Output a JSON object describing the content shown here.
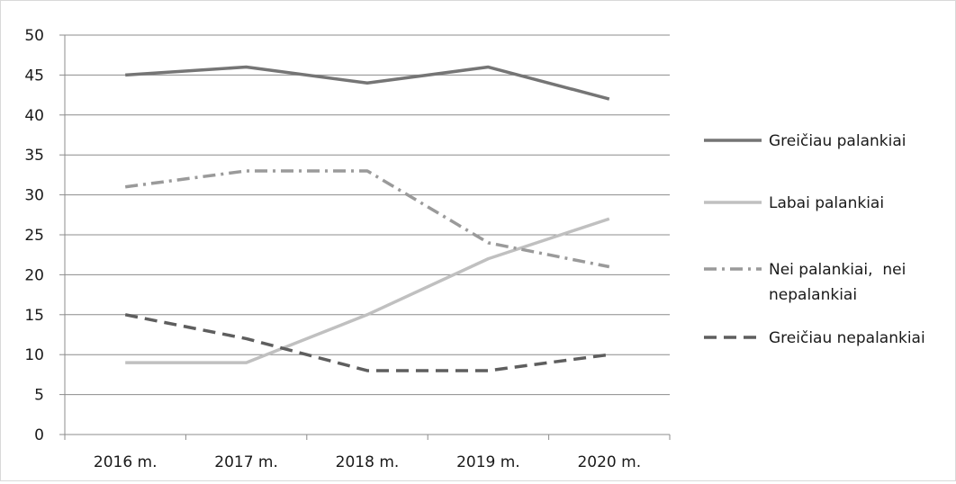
{
  "chart_data": {
    "type": "line",
    "title": "",
    "xlabel": "",
    "ylabel": "",
    "categories": [
      "2016 m.",
      "2017 m.",
      "2018 m.",
      "2019 m.",
      "2020 m."
    ],
    "ylim": [
      0,
      50
    ],
    "yticks": [
      0,
      5,
      10,
      15,
      20,
      25,
      30,
      35,
      40,
      45,
      50
    ],
    "grid": true,
    "legend_position": "right",
    "series": [
      {
        "name": "Greičiau palankiai",
        "name_lines": [
          "Greičiau palankiai"
        ],
        "values": [
          45,
          46,
          44,
          46,
          42
        ],
        "color": "#757575",
        "style": "solid"
      },
      {
        "name": "Labai palankiai",
        "name_lines": [
          "Labai palankiai"
        ],
        "values": [
          9,
          9,
          15,
          22,
          27
        ],
        "color": "#c0c0c0",
        "style": "solid"
      },
      {
        "name": "Nei palankiai, nei nepalankiai",
        "name_lines": [
          "Nei palankiai,  nei",
          "nepalankiai"
        ],
        "values": [
          31,
          33,
          33,
          24,
          21
        ],
        "color": "#9a9a9a",
        "style": "dash-dot"
      },
      {
        "name": "Greičiau nepalankiai",
        "name_lines": [
          "Greičiau nepalankiai"
        ],
        "values": [
          15,
          12,
          8,
          8,
          10
        ],
        "color": "#5e5e5e",
        "style": "dashed"
      }
    ]
  }
}
